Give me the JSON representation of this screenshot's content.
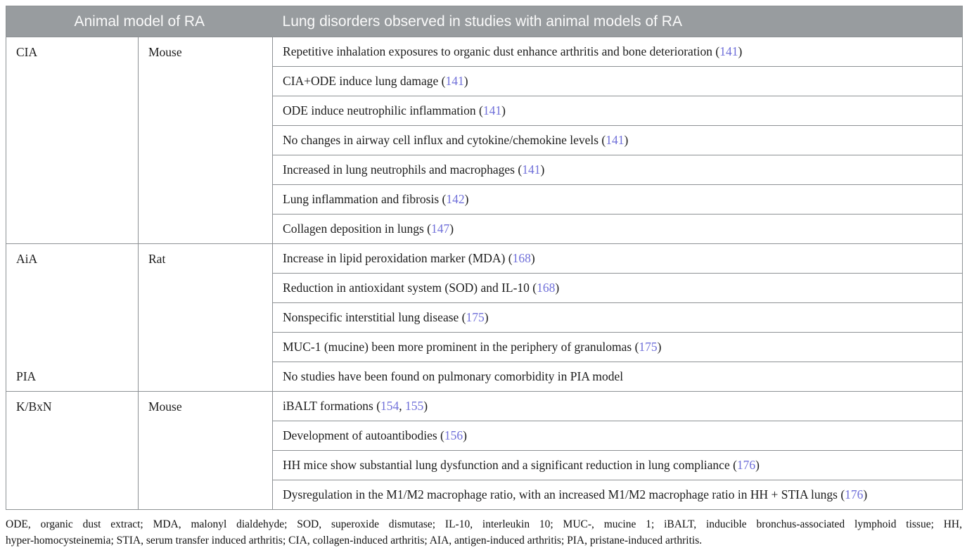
{
  "header": {
    "col_model": "Animal model of RA",
    "col_disorders": "Lung disorders observed in studies with animal models of RA"
  },
  "colors": {
    "header_bg": "#989c9f",
    "header_text": "#fafafa",
    "border": "#8d9194",
    "body_text": "#1c1c1c",
    "citation_link": "#6f6fd9"
  },
  "groups": [
    {
      "model": "CIA",
      "model2": "",
      "species": "Mouse",
      "rows": [
        {
          "segments": [
            {
              "t": "Repetitive inhalation exposures to organic dust enhance arthritis and bone deterioration ("
            },
            {
              "t": "141",
              "ref": true
            },
            {
              "t": ")"
            }
          ]
        },
        {
          "segments": [
            {
              "t": "CIA+ODE induce lung damage ("
            },
            {
              "t": "141",
              "ref": true
            },
            {
              "t": ")"
            }
          ]
        },
        {
          "segments": [
            {
              "t": "ODE induce neutrophilic inflammation ("
            },
            {
              "t": "141",
              "ref": true
            },
            {
              "t": ")"
            }
          ]
        },
        {
          "segments": [
            {
              "t": "No changes in airway cell influx and cytokine/chemokine levels ("
            },
            {
              "t": "141",
              "ref": true
            },
            {
              "t": ")"
            }
          ]
        },
        {
          "segments": [
            {
              "t": "Increased in lung neutrophils and macrophages ("
            },
            {
              "t": "141",
              "ref": true
            },
            {
              "t": ")"
            }
          ]
        },
        {
          "segments": [
            {
              "t": "Lung inflammation and fibrosis ("
            },
            {
              "t": "142",
              "ref": true
            },
            {
              "t": ")"
            }
          ]
        },
        {
          "segments": [
            {
              "t": "Collagen deposition in lungs ("
            },
            {
              "t": "147",
              "ref": true
            },
            {
              "t": ")"
            }
          ]
        }
      ]
    },
    {
      "model": "AiA",
      "model2": "PIA",
      "species": "Rat",
      "rows": [
        {
          "segments": [
            {
              "t": "Increase in lipid peroxidation marker (MDA) ("
            },
            {
              "t": "168",
              "ref": true
            },
            {
              "t": ")"
            }
          ]
        },
        {
          "segments": [
            {
              "t": "Reduction in antioxidant system (SOD) and IL-10 ("
            },
            {
              "t": "168",
              "ref": true
            },
            {
              "t": ")"
            }
          ]
        },
        {
          "segments": [
            {
              "t": "Nonspecific interstitial lung disease ("
            },
            {
              "t": "175",
              "ref": true
            },
            {
              "t": ")"
            }
          ]
        },
        {
          "segments": [
            {
              "t": "MUC-1 (mucine) been more prominent in the periphery of granulomas ("
            },
            {
              "t": "175",
              "ref": true
            },
            {
              "t": ")"
            }
          ]
        },
        {
          "segments": [
            {
              "t": "No studies have been found on pulmonary comorbidity in PIA model"
            }
          ]
        }
      ]
    },
    {
      "model": "K/BxN",
      "model2": "",
      "species": "Mouse",
      "rows": [
        {
          "segments": [
            {
              "t": "iBALT formations ("
            },
            {
              "t": "154",
              "ref": true
            },
            {
              "t": ", "
            },
            {
              "t": "155",
              "ref": true
            },
            {
              "t": ")"
            }
          ]
        },
        {
          "segments": [
            {
              "t": "Development of autoantibodies ("
            },
            {
              "t": "156",
              "ref": true
            },
            {
              "t": ")"
            }
          ]
        },
        {
          "segments": [
            {
              "t": "HH mice show substantial lung dysfunction and a significant reduction in lung compliance ("
            },
            {
              "t": "176",
              "ref": true
            },
            {
              "t": ")"
            }
          ]
        },
        {
          "segments": [
            {
              "t": "Dysregulation in the M1/M2 macrophage ratio, with an increased M1/M2 macrophage ratio in HH + STIA lungs ("
            },
            {
              "t": "176",
              "ref": true
            },
            {
              "t": ")"
            }
          ]
        }
      ]
    }
  ],
  "footnote": {
    "line1": "ODE, organic dust extract; MDA, malonyl dialdehyde; SOD, superoxide dismutase; IL-10, interleukin 10; MUC-, mucine 1; iBALT, inducible bronchus-associated lymphoid tissue; HH,",
    "line2": "hyper-homocysteinemia; STIA, serum transfer induced arthritis; CIA, collagen-induced arthritis; AIA, antigen-induced arthritis; PIA, pristane-induced arthritis."
  }
}
